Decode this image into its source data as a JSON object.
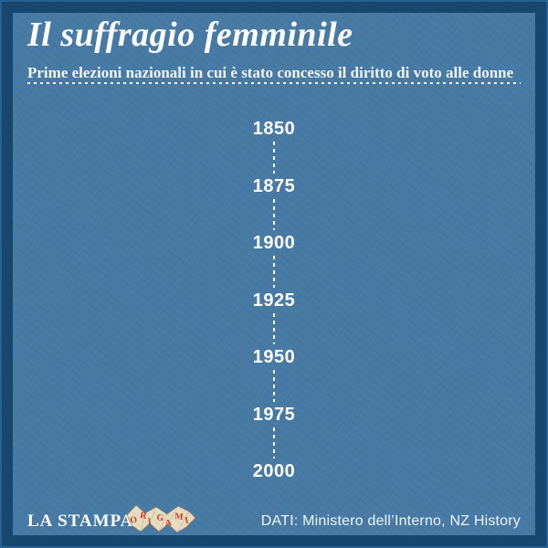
{
  "header": {
    "title": "Il suffragio femminile",
    "subtitle": "Prime elezioni nazionali in cui è stato concesso il diritto di voto alle donne"
  },
  "chart_data": {
    "type": "line",
    "subtype": "vertical-timeline-axis",
    "title": "Il suffragio femminile",
    "subtitle": "Prime elezioni nazionali in cui è stato concesso il diritto di voto alle donne",
    "axis_orientation": "vertical",
    "axis_range": [
      1850,
      2000
    ],
    "tick_interval": 25,
    "years": [
      "1850",
      "1875",
      "1900",
      "1925",
      "1950",
      "1975",
      "2000"
    ],
    "series": [],
    "notes": "Empty timeline axis (intro frame); dashed connector between year ticks, no data points plotted",
    "grid": false,
    "legend": false
  },
  "colors": {
    "border": "#16476e",
    "background": "#477aa5",
    "text": "#ffffff",
    "origami_paper": "#e9ddc0",
    "origami_letters": "#c93a28"
  },
  "footer": {
    "brand": "LA STAMPA",
    "logo_name": "ORIGAMI",
    "logo_letters": [
      "O",
      "R",
      "I",
      "G",
      "A",
      "M",
      "I"
    ],
    "source": "DATI: Ministero dell’Interno, NZ History"
  }
}
